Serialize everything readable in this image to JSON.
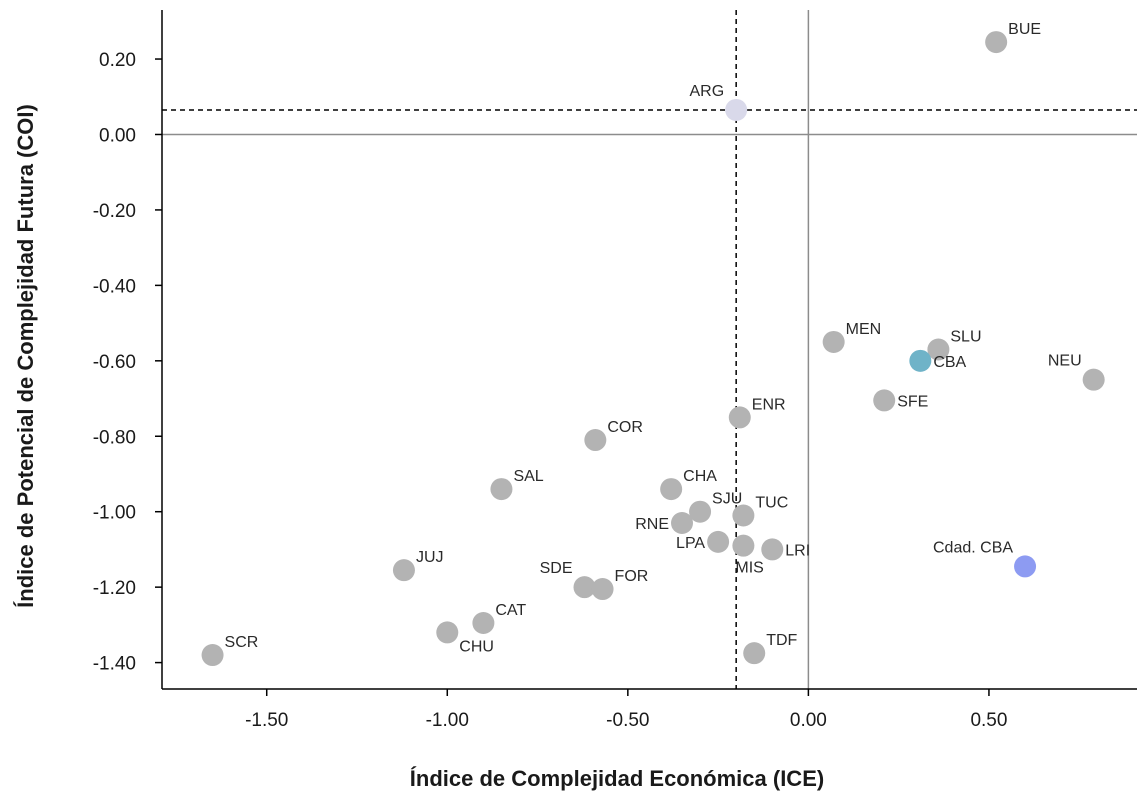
{
  "chart_data": {
    "type": "scatter",
    "xlabel": "Índice de Complejidad Económica (ICE)",
    "ylabel": "Índice de Potencial de Complejidad Futura (COI)",
    "xlim": [
      -1.79,
      0.91
    ],
    "ylim": [
      -1.47,
      0.33
    ],
    "x_ticks": [
      -1.5,
      -1.0,
      -0.5,
      0.0,
      0.5
    ],
    "x_tick_labels": [
      "-1.50",
      "-1.00",
      "-0.50",
      "0.00",
      "0.50"
    ],
    "y_ticks": [
      0.2,
      0.0,
      -0.2,
      -0.4,
      -0.6,
      -0.8,
      -1.0,
      -1.2,
      -1.4
    ],
    "y_tick_labels": [
      "0.20",
      "0.00",
      "-0.20",
      "-0.40",
      "-0.60",
      "-0.80",
      "-1.00",
      "-1.20",
      "-1.40"
    ],
    "grid": false,
    "reference_lines": {
      "solid_vertical_x": 0.0,
      "solid_horizontal_y": 0.0,
      "dashed_vertical_x": -0.2,
      "dashed_horizontal_y": 0.065
    },
    "colors": {
      "default": "#b3b3b3",
      "ARG": "#d9d9ea",
      "CBA": "#6fb3c8",
      "Cdad. CBA": "#8d9bf2",
      "axis": "#000000",
      "reference_solid": "#8c8c8c",
      "reference_dashed": "#000000"
    },
    "points": [
      {
        "label": "BUE",
        "x": 0.52,
        "y": 0.245,
        "group": "default",
        "label_pos": "upper-right"
      },
      {
        "label": "ARG",
        "x": -0.2,
        "y": 0.065,
        "group": "ARG",
        "label_pos": "upper-left"
      },
      {
        "label": "MEN",
        "x": 0.07,
        "y": -0.55,
        "group": "default",
        "label_pos": "upper-right"
      },
      {
        "label": "SLU",
        "x": 0.36,
        "y": -0.57,
        "group": "default",
        "label_pos": "upper-right"
      },
      {
        "label": "CBA",
        "x": 0.31,
        "y": -0.6,
        "group": "CBA",
        "label_pos": "right"
      },
      {
        "label": "NEU",
        "x": 0.79,
        "y": -0.65,
        "group": "default",
        "label_pos": "upper-left"
      },
      {
        "label": "SFE",
        "x": 0.21,
        "y": -0.705,
        "group": "default",
        "label_pos": "right"
      },
      {
        "label": "ENR",
        "x": -0.19,
        "y": -0.75,
        "group": "default",
        "label_pos": "upper-right"
      },
      {
        "label": "COR",
        "x": -0.59,
        "y": -0.81,
        "group": "default",
        "label_pos": "upper-right"
      },
      {
        "label": "SAL",
        "x": -0.85,
        "y": -0.94,
        "group": "default",
        "label_pos": "upper-right"
      },
      {
        "label": "CHA",
        "x": -0.38,
        "y": -0.94,
        "group": "default",
        "label_pos": "upper-right"
      },
      {
        "label": "SJU",
        "x": -0.3,
        "y": -1.0,
        "group": "default",
        "label_pos": "upper-right"
      },
      {
        "label": "TUC",
        "x": -0.18,
        "y": -1.01,
        "group": "default",
        "label_pos": "upper-right"
      },
      {
        "label": "RNE",
        "x": -0.35,
        "y": -1.03,
        "group": "default",
        "label_pos": "left"
      },
      {
        "label": "LPA",
        "x": -0.25,
        "y": -1.08,
        "group": "default",
        "label_pos": "left"
      },
      {
        "label": "MIS",
        "x": -0.18,
        "y": -1.09,
        "group": "default",
        "label_pos": "below"
      },
      {
        "label": "LRI",
        "x": -0.1,
        "y": -1.1,
        "group": "default",
        "label_pos": "right"
      },
      {
        "label": "Cdad. CBA",
        "x": 0.6,
        "y": -1.145,
        "group": "Cdad. CBA",
        "label_pos": "upper-left"
      },
      {
        "label": "JUJ",
        "x": -1.12,
        "y": -1.155,
        "group": "default",
        "label_pos": "upper-right"
      },
      {
        "label": "SDE",
        "x": -0.62,
        "y": -1.2,
        "group": "default",
        "label_pos": "upper-left"
      },
      {
        "label": "FOR",
        "x": -0.57,
        "y": -1.205,
        "group": "default",
        "label_pos": "upper-right"
      },
      {
        "label": "CAT",
        "x": -0.9,
        "y": -1.295,
        "group": "default",
        "label_pos": "upper-right"
      },
      {
        "label": "CHU",
        "x": -1.0,
        "y": -1.32,
        "group": "default",
        "label_pos": "lower-right"
      },
      {
        "label": "SCR",
        "x": -1.65,
        "y": -1.38,
        "group": "default",
        "label_pos": "upper-right"
      },
      {
        "label": "TDF",
        "x": -0.15,
        "y": -1.375,
        "group": "default",
        "label_pos": "upper-right"
      }
    ]
  }
}
